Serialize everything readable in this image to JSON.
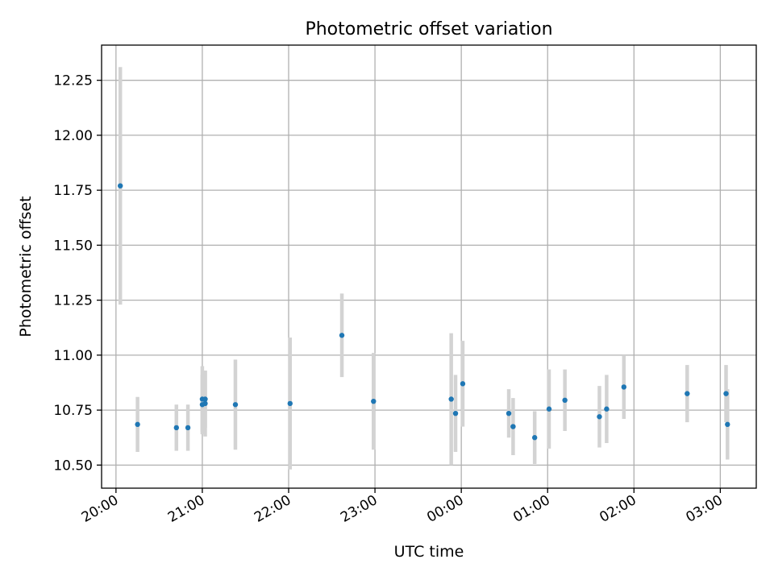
{
  "chart_data": {
    "type": "scatter",
    "title": "Photometric offset variation",
    "xlabel": "UTC time",
    "ylabel": "Photometric offset",
    "x_axis": "time (UTC, hours spanning midnight)",
    "xlim": [
      "19:50",
      "03:25"
    ],
    "ylim": [
      10.395,
      12.41
    ],
    "grid": true,
    "xticks": [
      "20:00",
      "21:00",
      "22:00",
      "23:00",
      "00:00",
      "01:00",
      "02:00",
      "03:00"
    ],
    "yticks": [
      10.5,
      10.75,
      11.0,
      11.25,
      11.5,
      11.75,
      12.0,
      12.25
    ],
    "ytick_labels": [
      "10.50",
      "10.75",
      "11.00",
      "11.25",
      "11.50",
      "11.75",
      "12.00",
      "12.25"
    ],
    "colors": {
      "point": "#1f77b4",
      "errorbar": "#d3d3d3",
      "grid": "#b0b0b0"
    },
    "points": [
      {
        "x": "20:03",
        "y": 11.77,
        "err": 0.54
      },
      {
        "x": "20:15",
        "y": 10.685,
        "err": 0.125
      },
      {
        "x": "20:42",
        "y": 10.67,
        "err": 0.105
      },
      {
        "x": "20:50",
        "y": 10.67,
        "err": 0.105
      },
      {
        "x": "21:00",
        "y": 10.8,
        "err": 0.15
      },
      {
        "x": "21:00",
        "y": 10.775,
        "err": 0.135
      },
      {
        "x": "21:02",
        "y": 10.8,
        "err": 0.13
      },
      {
        "x": "21:02",
        "y": 10.78,
        "err": 0.15
      },
      {
        "x": "21:23",
        "y": 10.775,
        "err": 0.205
      },
      {
        "x": "22:01",
        "y": 10.78,
        "err": 0.3
      },
      {
        "x": "22:37",
        "y": 11.09,
        "err": 0.19
      },
      {
        "x": "22:59",
        "y": 10.79,
        "err": 0.22
      },
      {
        "x": "23:53",
        "y": 10.8,
        "err": 0.3
      },
      {
        "x": "23:56",
        "y": 10.735,
        "err": 0.175
      },
      {
        "x": "00:01",
        "y": 10.87,
        "err": 0.195
      },
      {
        "x": "00:33",
        "y": 10.735,
        "err": 0.11
      },
      {
        "x": "00:36",
        "y": 10.675,
        "err": 0.13
      },
      {
        "x": "00:51",
        "y": 10.625,
        "err": 0.12
      },
      {
        "x": "01:01",
        "y": 10.755,
        "err": 0.18
      },
      {
        "x": "01:12",
        "y": 10.795,
        "err": 0.14
      },
      {
        "x": "01:36",
        "y": 10.72,
        "err": 0.14
      },
      {
        "x": "01:41",
        "y": 10.755,
        "err": 0.155
      },
      {
        "x": "01:53",
        "y": 10.855,
        "err": 0.145
      },
      {
        "x": "02:37",
        "y": 10.825,
        "err": 0.13
      },
      {
        "x": "03:04",
        "y": 10.825,
        "err": 0.13
      },
      {
        "x": "03:05",
        "y": 10.685,
        "err": 0.16
      }
    ]
  }
}
